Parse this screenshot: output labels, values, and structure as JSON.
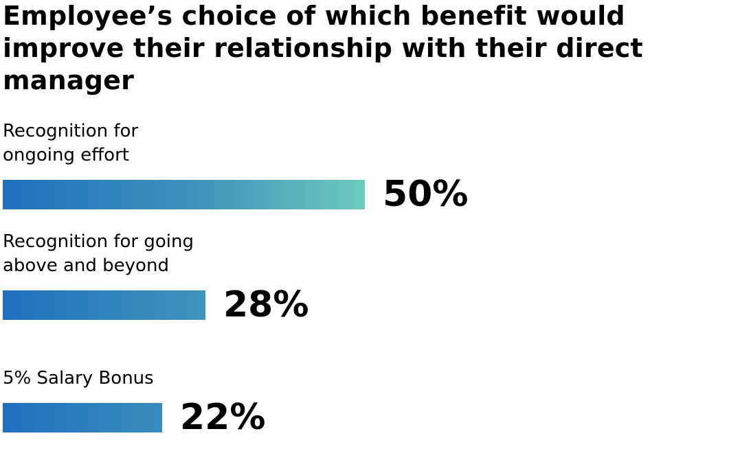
{
  "chart_data": {
    "type": "bar",
    "orientation": "horizontal",
    "title": "Employee’s choice of which benefit would improve their relationship with their direct manager",
    "categories": [
      "Recognition for ongoing effort",
      "Recognition for going above and beyond",
      "5% Salary Bonus"
    ],
    "category_lines": [
      [
        "Recognition for",
        "ongoing effort"
      ],
      [
        "Recognition for going",
        "above and beyond"
      ],
      [
        "5% Salary Bonus"
      ]
    ],
    "values": [
      50,
      28,
      22
    ],
    "value_labels": [
      "50%",
      "28%",
      "22%"
    ],
    "unit": "%",
    "xlim": [
      0,
      50
    ],
    "grid": false,
    "legend": "none",
    "colors": {
      "bar_start": "#1f70bf",
      "bar_mid": "#3f94bb",
      "bar_end": "#6ccbbd",
      "text": "#000000"
    }
  }
}
